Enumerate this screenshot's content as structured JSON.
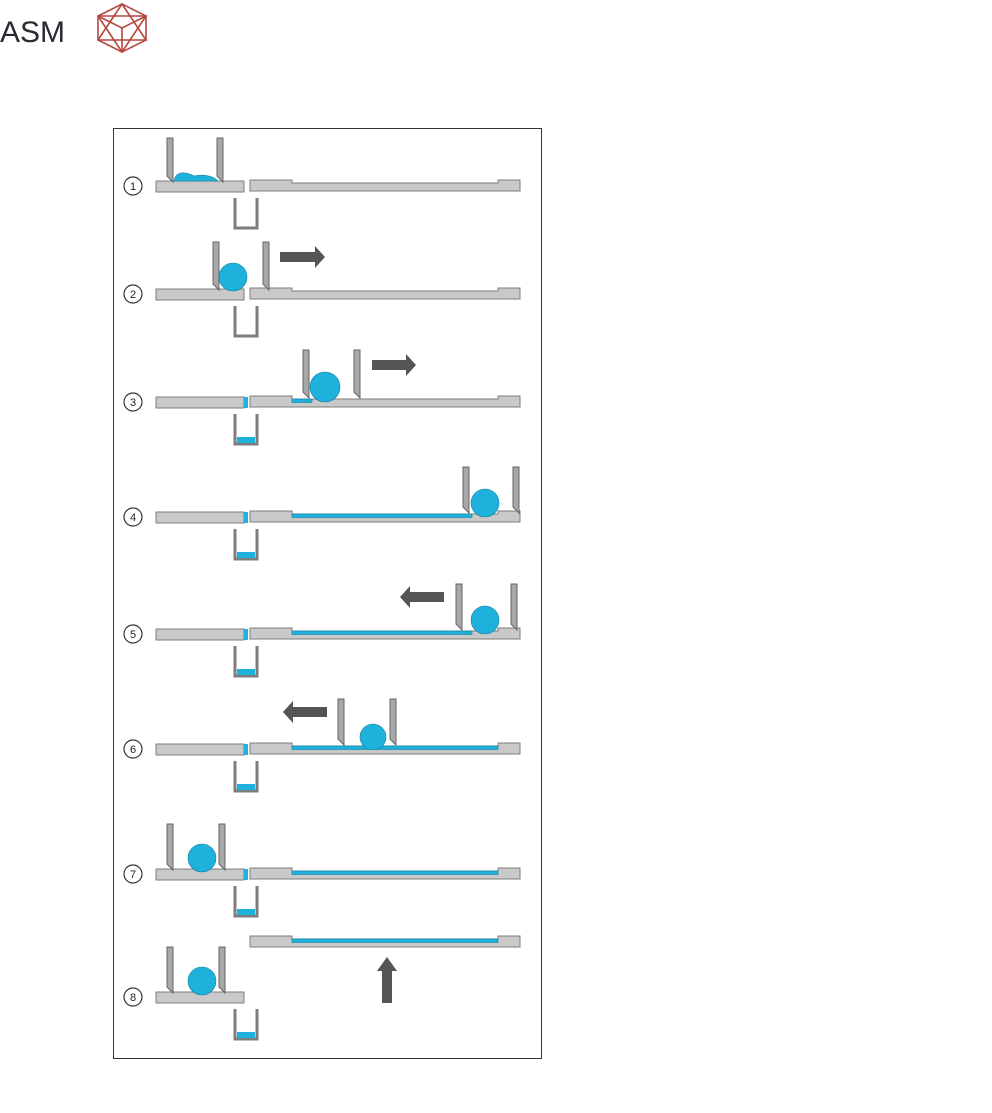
{
  "header": {
    "logo": "ASM"
  },
  "steps": [
    {
      "label": "1"
    },
    {
      "label": "2"
    },
    {
      "label": "3"
    },
    {
      "label": "4"
    },
    {
      "label": "5"
    },
    {
      "label": "6"
    },
    {
      "label": "7"
    },
    {
      "label": "8"
    }
  ]
}
